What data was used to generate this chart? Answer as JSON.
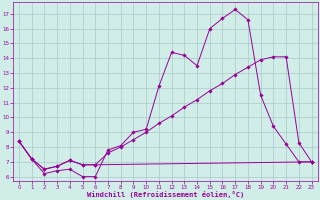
{
  "xlabel": "Windchill (Refroidissement éolien,°C)",
  "bg_color": "#d0ede8",
  "grid_color": "#aac8c8",
  "line_color": "#990099",
  "xlim_min": -0.5,
  "xlim_max": 23.5,
  "ylim_min": 5.7,
  "ylim_max": 17.8,
  "yticks": [
    6,
    7,
    8,
    9,
    10,
    11,
    12,
    13,
    14,
    15,
    16,
    17
  ],
  "xticks": [
    0,
    1,
    2,
    3,
    4,
    5,
    6,
    7,
    8,
    9,
    10,
    11,
    12,
    13,
    14,
    15,
    16,
    17,
    18,
    19,
    20,
    21,
    22,
    23
  ],
  "line1_x": [
    0,
    1,
    2,
    3,
    4,
    5,
    6,
    7,
    8,
    9,
    10,
    11,
    12,
    13,
    14,
    15,
    16,
    17,
    18,
    19,
    20,
    21,
    22,
    23
  ],
  "line1_y": [
    8.4,
    7.2,
    6.2,
    6.4,
    6.5,
    6.0,
    6.0,
    7.8,
    8.1,
    9.0,
    9.2,
    12.1,
    14.4,
    14.2,
    13.5,
    16.0,
    16.7,
    17.3,
    16.6,
    11.5,
    9.4,
    8.2,
    7.0,
    7.0
  ],
  "line2_x": [
    0,
    1,
    2,
    3,
    4,
    5,
    6,
    7,
    8,
    9,
    10,
    11,
    12,
    13,
    14,
    15,
    16,
    17,
    18,
    19,
    20,
    21,
    22,
    23
  ],
  "line2_y": [
    8.4,
    7.2,
    6.5,
    6.7,
    7.1,
    6.8,
    6.8,
    7.6,
    8.0,
    8.5,
    9.0,
    9.6,
    10.1,
    10.7,
    11.2,
    11.8,
    12.3,
    12.9,
    13.4,
    13.9,
    14.1,
    14.1,
    8.3,
    7.0
  ],
  "line3_x": [
    0,
    1,
    2,
    3,
    4,
    5,
    6,
    23
  ],
  "line3_y": [
    8.4,
    7.2,
    6.5,
    6.7,
    7.1,
    6.8,
    6.8,
    7.0
  ],
  "tick_fontsize": 4,
  "xlabel_fontsize": 5,
  "marker_size": 1.8,
  "line_width": 0.7
}
